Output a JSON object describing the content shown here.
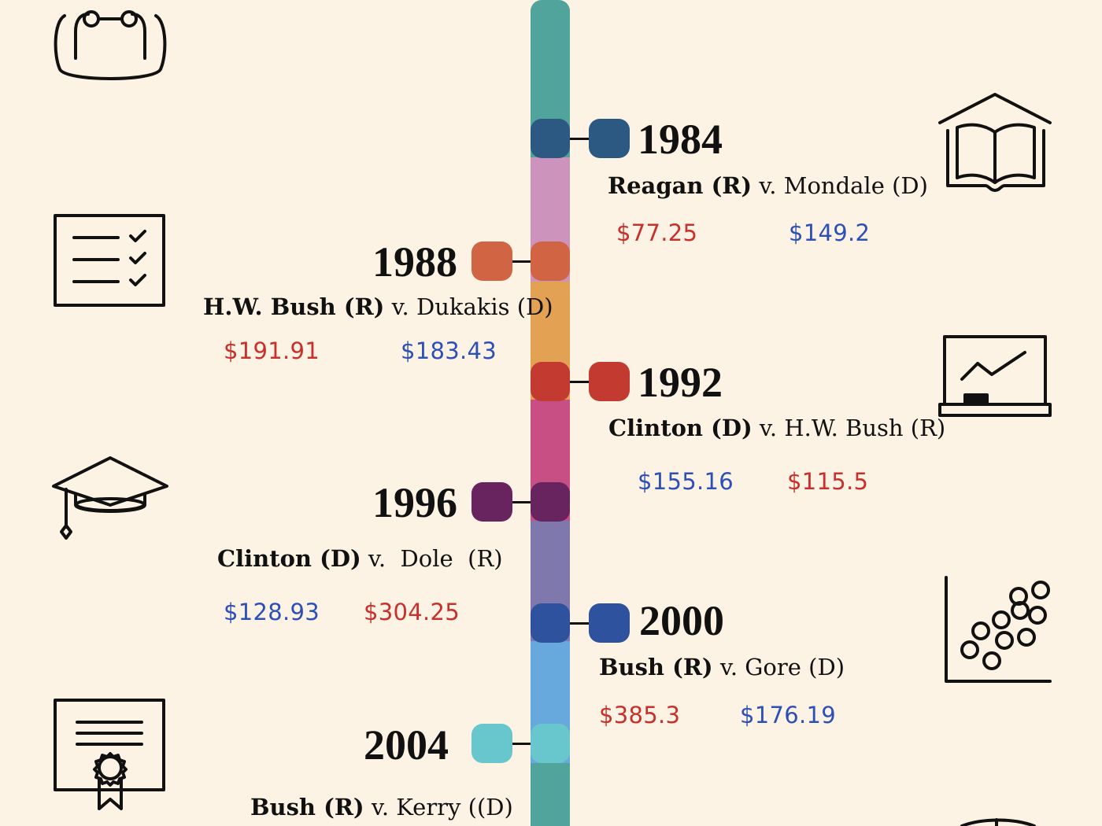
{
  "colors": {
    "background": "#fdf3e4",
    "republican": "#c9302c",
    "democrat": "#2d50b8",
    "spine": [
      "#50a49b",
      "#cc93bd",
      "#e3a153",
      "#c84f83",
      "#7f78ad",
      "#67a9dd",
      "#50a49b"
    ]
  },
  "icons": {
    "left": [
      "backpack-icon",
      "checklist-icon",
      "graduation-cap-icon",
      "certificate-icon"
    ],
    "right": [
      "open-book-icon",
      "chalkboard-chart-icon",
      "scatter-plot-icon",
      "globe-icon"
    ]
  },
  "elections": [
    {
      "year": "1984",
      "side": "right",
      "color": "#2c5982",
      "winner": "Reagan (R)",
      "sep": " v. ",
      "opponent": "Mondale (D)",
      "amounts": [
        {
          "value": "$77.25",
          "party": "R"
        },
        {
          "value": "$149.2",
          "party": "D"
        }
      ]
    },
    {
      "year": "1988",
      "side": "left",
      "color": "#d16443",
      "winner": "H.W. Bush (R)",
      "sep": " v. ",
      "opponent": "Dukakis (D)",
      "amounts": [
        {
          "value": "$191.91",
          "party": "R"
        },
        {
          "value": "$183.43",
          "party": "D"
        }
      ]
    },
    {
      "year": "1992",
      "side": "right",
      "color": "#c33a31",
      "winner": "Clinton (D)",
      "sep": " v. ",
      "opponent": "H.W. Bush (R)",
      "amounts": [
        {
          "value": "$155.16",
          "party": "D"
        },
        {
          "value": "$115.5",
          "party": "R"
        }
      ]
    },
    {
      "year": "1996",
      "side": "left",
      "color": "#68245e",
      "winner": "Clinton (D)",
      "sep": " v.  ",
      "opponent": "Dole  (R)",
      "amounts": [
        {
          "value": "$128.93",
          "party": "D"
        },
        {
          "value": "$304.25",
          "party": "R"
        }
      ]
    },
    {
      "year": "2000",
      "side": "right",
      "color": "#2f529e",
      "winner": "Bush (R)",
      "sep": " v. ",
      "opponent": "Gore (D)",
      "amounts": [
        {
          "value": "$385.3",
          "party": "R"
        },
        {
          "value": "$176.19",
          "party": "D"
        }
      ]
    },
    {
      "year": "2004",
      "side": "left",
      "color": "#68c7cc",
      "winner": "Bush (R)",
      "sep": " v. ",
      "opponent": "Kerry ((D)",
      "amounts": []
    }
  ]
}
